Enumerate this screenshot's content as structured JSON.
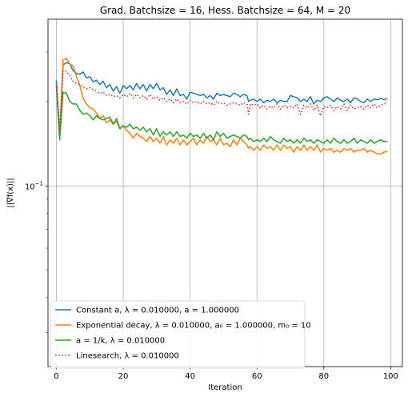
{
  "chart_data": {
    "type": "line",
    "title": "Grad. Batchsize = 16, Hess. Batchsize = 64, M = 20",
    "xlabel": "Iteration",
    "ylabel": "||∇f(x)||",
    "xlim": [
      -2.5,
      103.5
    ],
    "ylim": [
      0.0227,
      0.393
    ],
    "yscale": "log",
    "grid": true,
    "legend_position": "lower-left",
    "x_ticks": [
      {
        "value": 0,
        "label": "0"
      },
      {
        "value": 20,
        "label": "20"
      },
      {
        "value": 40,
        "label": "40"
      },
      {
        "value": 60,
        "label": "60"
      },
      {
        "value": 80,
        "label": "80"
      },
      {
        "value": 100,
        "label": "100"
      }
    ],
    "y_ticks": [
      {
        "value": 0.1,
        "base": "10",
        "exponent": "−1"
      }
    ],
    "x": [
      0,
      1,
      2,
      3,
      4,
      5,
      6,
      7,
      8,
      9,
      10,
      11,
      12,
      13,
      14,
      15,
      16,
      17,
      18,
      19,
      20,
      21,
      22,
      23,
      24,
      25,
      26,
      27,
      28,
      29,
      30,
      31,
      32,
      33,
      34,
      35,
      36,
      37,
      38,
      39,
      40,
      41,
      42,
      43,
      44,
      45,
      46,
      47,
      48,
      49,
      50,
      51,
      52,
      53,
      54,
      55,
      56,
      57,
      57.5,
      58,
      59,
      60,
      61,
      62,
      63,
      64,
      65,
      66,
      67,
      68,
      69,
      70,
      71,
      72,
      73,
      74,
      75,
      76,
      77,
      78,
      79,
      80,
      81,
      82,
      83,
      84,
      85,
      86,
      87,
      88,
      89,
      90,
      91,
      92,
      93,
      94,
      95,
      96,
      97,
      98,
      99
    ],
    "series": [
      {
        "name": "Constant a, λ = 0.010000, a = 1.000000",
        "color": "#1f77b4",
        "style": "solid",
        "values": [
          0.238,
          0.152,
          0.27,
          0.275,
          0.273,
          0.258,
          0.252,
          0.25,
          0.255,
          0.243,
          0.245,
          0.235,
          0.238,
          0.23,
          0.236,
          0.224,
          0.23,
          0.218,
          0.226,
          0.214,
          0.228,
          0.222,
          0.228,
          0.22,
          0.232,
          0.222,
          0.23,
          0.218,
          0.23,
          0.222,
          0.232,
          0.22,
          0.224,
          0.212,
          0.22,
          0.21,
          0.222,
          0.21,
          0.212,
          0.204,
          0.216,
          0.214,
          0.212,
          0.21,
          0.212,
          0.206,
          0.21,
          0.204,
          0.214,
          0.21,
          0.212,
          0.21,
          0.208,
          0.214,
          0.212,
          0.208,
          0.212,
          0.21,
          0.2,
          0.202,
          0.204,
          0.2,
          0.204,
          0.198,
          0.202,
          0.2,
          0.204,
          0.198,
          0.202,
          0.2,
          0.2,
          0.21,
          0.208,
          0.206,
          0.2,
          0.204,
          0.2,
          0.208,
          0.196,
          0.202,
          0.2,
          0.206,
          0.208,
          0.204,
          0.2,
          0.206,
          0.202,
          0.2,
          0.204,
          0.198,
          0.206,
          0.204,
          0.2,
          0.198,
          0.204,
          0.2,
          0.204,
          0.203,
          0.205,
          0.203,
          0.205
        ]
      },
      {
        "name": "Exponential decay, λ = 0.010000, a₀ = 1.000000, m₀ = 10",
        "color": "#ff7f0e",
        "style": "solid",
        "values": [
          0.228,
          0.15,
          0.282,
          0.285,
          0.272,
          0.268,
          0.246,
          0.228,
          0.206,
          0.196,
          0.19,
          0.188,
          0.182,
          0.174,
          0.178,
          0.168,
          0.172,
          0.166,
          0.17,
          0.16,
          0.164,
          0.158,
          0.154,
          0.148,
          0.154,
          0.15,
          0.148,
          0.144,
          0.15,
          0.144,
          0.148,
          0.142,
          0.15,
          0.14,
          0.146,
          0.142,
          0.148,
          0.14,
          0.146,
          0.14,
          0.144,
          0.148,
          0.14,
          0.146,
          0.142,
          0.15,
          0.144,
          0.146,
          0.14,
          0.148,
          0.14,
          0.142,
          0.138,
          0.146,
          0.14,
          0.148,
          0.144,
          0.14,
          0.136,
          0.138,
          0.134,
          0.138,
          0.134,
          0.14,
          0.136,
          0.138,
          0.134,
          0.14,
          0.134,
          0.14,
          0.136,
          0.138,
          0.132,
          0.138,
          0.134,
          0.14,
          0.134,
          0.138,
          0.134,
          0.14,
          0.132,
          0.136,
          0.134,
          0.136,
          0.132,
          0.134,
          0.132,
          0.136,
          0.134,
          0.136,
          0.132,
          0.134,
          0.134,
          0.136,
          0.132,
          0.134,
          0.132,
          0.13,
          0.13,
          0.132,
          0.133
        ]
      },
      {
        "name": "a = 1/k, λ = 0.010000",
        "color": "#2ca02c",
        "style": "solid",
        "values": [
          0.232,
          0.146,
          0.216,
          0.214,
          0.2,
          0.196,
          0.196,
          0.186,
          0.18,
          0.182,
          0.178,
          0.172,
          0.178,
          0.174,
          0.172,
          0.174,
          0.176,
          0.166,
          0.174,
          0.16,
          0.164,
          0.162,
          0.166,
          0.16,
          0.162,
          0.158,
          0.162,
          0.156,
          0.16,
          0.152,
          0.16,
          0.15,
          0.156,
          0.152,
          0.156,
          0.15,
          0.156,
          0.15,
          0.152,
          0.148,
          0.154,
          0.15,
          0.152,
          0.148,
          0.154,
          0.148,
          0.152,
          0.146,
          0.156,
          0.15,
          0.154,
          0.148,
          0.15,
          0.152,
          0.15,
          0.148,
          0.152,
          0.15,
          0.146,
          0.148,
          0.144,
          0.146,
          0.144,
          0.148,
          0.144,
          0.15,
          0.146,
          0.144,
          0.142,
          0.148,
          0.144,
          0.146,
          0.142,
          0.146,
          0.142,
          0.148,
          0.144,
          0.146,
          0.142,
          0.146,
          0.144,
          0.142,
          0.146,
          0.142,
          0.148,
          0.144,
          0.142,
          0.146,
          0.142,
          0.144,
          0.148,
          0.142,
          0.146,
          0.144,
          0.142,
          0.146,
          0.142,
          0.144,
          0.146,
          0.144,
          0.144
        ]
      },
      {
        "name": "Linesearch, λ = 0.010000",
        "color": "#d62728",
        "style": "dotted",
        "values": [
          0.226,
          0.16,
          0.258,
          0.256,
          0.248,
          0.236,
          0.232,
          0.23,
          0.226,
          0.222,
          0.224,
          0.22,
          0.218,
          0.214,
          0.216,
          0.21,
          0.212,
          0.208,
          0.21,
          0.206,
          0.212,
          0.208,
          0.214,
          0.206,
          0.212,
          0.206,
          0.21,
          0.204,
          0.212,
          0.204,
          0.208,
          0.202,
          0.206,
          0.2,
          0.204,
          0.198,
          0.204,
          0.198,
          0.2,
          0.196,
          0.202,
          0.198,
          0.2,
          0.196,
          0.2,
          0.196,
          0.198,
          0.194,
          0.2,
          0.196,
          0.198,
          0.194,
          0.196,
          0.198,
          0.196,
          0.194,
          0.198,
          0.196,
          0.18,
          0.196,
          0.194,
          0.196,
          0.19,
          0.194,
          0.188,
          0.192,
          0.19,
          0.196,
          0.188,
          0.194,
          0.19,
          0.192,
          0.19,
          0.196,
          0.18,
          0.194,
          0.19,
          0.196,
          0.186,
          0.194,
          0.178,
          0.192,
          0.19,
          0.194,
          0.186,
          0.192,
          0.188,
          0.196,
          0.186,
          0.194,
          0.188,
          0.19,
          0.192,
          0.188,
          0.194,
          0.19,
          0.196,
          0.19,
          0.194,
          0.196,
          0.198
        ]
      }
    ]
  }
}
